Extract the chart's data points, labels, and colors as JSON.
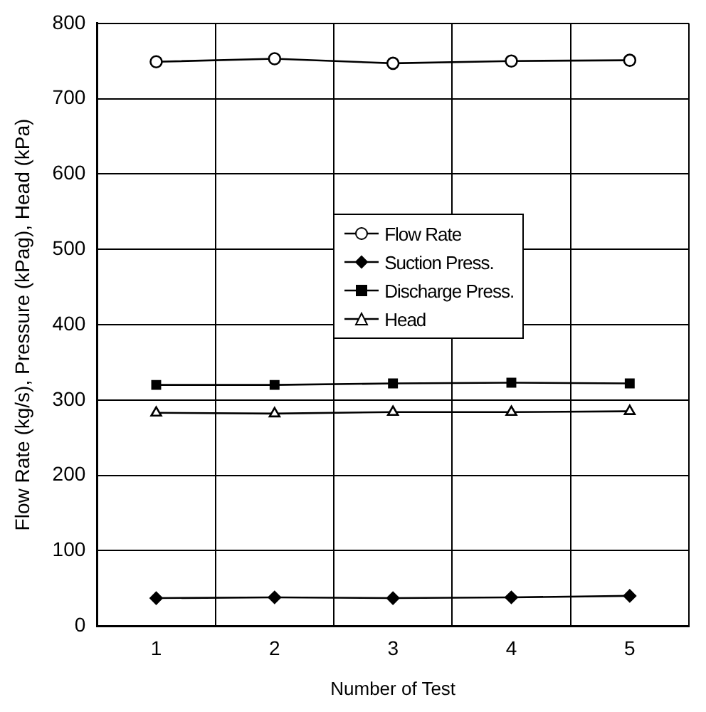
{
  "chart_data": {
    "type": "line",
    "xlabel": "Number of Test",
    "ylabel": "Flow Rate (kg/s), Pressure (kPag), Head (kPa)",
    "categories": [
      "1",
      "2",
      "3",
      "4",
      "5"
    ],
    "ylim": [
      0,
      800
    ],
    "yticks": [
      0,
      100,
      200,
      300,
      400,
      500,
      600,
      700,
      800
    ],
    "grid": true,
    "legend": "center",
    "line_style": "solid",
    "series": [
      {
        "name": "Flow Rate",
        "color": "#000000",
        "marker": "circle",
        "values": [
          749,
          753,
          747,
          750,
          751
        ]
      },
      {
        "name": "Suction Press.",
        "color": "#000000",
        "marker": "diamond",
        "values": [
          37,
          38,
          37,
          38,
          40
        ]
      },
      {
        "name": "Discharge Press.",
        "color": "#000000",
        "marker": "square",
        "values": [
          320,
          320,
          322,
          323,
          322
        ]
      },
      {
        "name": "Head",
        "color": "#000000",
        "marker": "triangle",
        "values": [
          283,
          282,
          284,
          284,
          285
        ]
      }
    ]
  }
}
